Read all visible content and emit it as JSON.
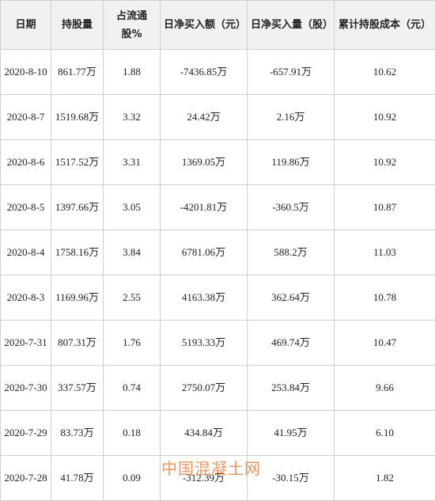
{
  "table": {
    "headers": [
      "日期",
      "持股量",
      "占流通股%",
      "日净买入额（元）",
      "日净买入量（股）",
      "累计持股成本（元）"
    ],
    "rows": [
      [
        "2020-8-10",
        "861.77万",
        "1.88",
        "-7436.85万",
        "-657.91万",
        "10.62"
      ],
      [
        "2020-8-7",
        "1519.68万",
        "3.32",
        "24.42万",
        "2.16万",
        "10.92"
      ],
      [
        "2020-8-6",
        "1517.52万",
        "3.31",
        "1369.05万",
        "119.86万",
        "10.92"
      ],
      [
        "2020-8-5",
        "1397.66万",
        "3.05",
        "-4201.81万",
        "-360.5万",
        "10.87"
      ],
      [
        "2020-8-4",
        "1758.16万",
        "3.84",
        "6781.06万",
        "588.2万",
        "11.03"
      ],
      [
        "2020-8-3",
        "1169.96万",
        "2.55",
        "4163.38万",
        "362.64万",
        "10.78"
      ],
      [
        "2020-7-31",
        "807.31万",
        "1.76",
        "5193.33万",
        "469.74万",
        "10.47"
      ],
      [
        "2020-7-30",
        "337.57万",
        "0.74",
        "2750.07万",
        "253.84万",
        "9.66"
      ],
      [
        "2020-7-29",
        "83.73万",
        "0.18",
        "434.84万",
        "41.95万",
        "6.10"
      ],
      [
        "2020-7-28",
        "41.78万",
        "0.09",
        "-312.39万",
        "-30.15万",
        "1.82"
      ]
    ]
  },
  "watermark": {
    "text": "中国混凝土网",
    "color": "#e87028"
  }
}
